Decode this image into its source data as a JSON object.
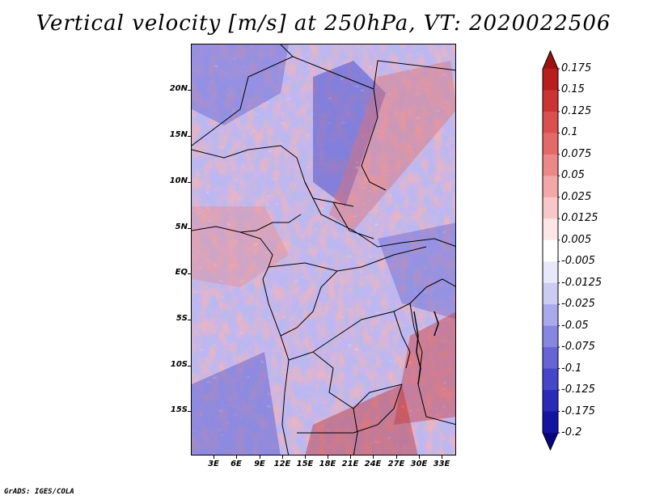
{
  "map": {
    "title": "Vertical velocity [m/s] at 250hPa, VT: 2020022506",
    "lat_labels": [
      "20N",
      "15N",
      "10N",
      "5N",
      "EQ",
      "5S",
      "10S",
      "15S"
    ],
    "lon_labels": [
      "3E",
      "6E",
      "9E",
      "12E",
      "15E",
      "18E",
      "21E",
      "24E",
      "27E",
      "30E",
      "33E"
    ],
    "footer": "GrADS: IGES/COLA"
  },
  "colorbar": {
    "levels": [
      "0.175",
      "0.15",
      "0.125",
      "0.1",
      "0.075",
      "0.05",
      "0.025",
      "0.0125",
      "0.005",
      "-0.005",
      "-0.0125",
      "-0.025",
      "-0.05",
      "-0.075",
      "-0.1",
      "-0.125",
      "-0.175",
      "-0.2"
    ],
    "colors": [
      "#a01010",
      "#b81e1e",
      "#cc3333",
      "#da4f4f",
      "#e46a6a",
      "#ec8888",
      "#f3a8a8",
      "#f8c8c8",
      "#fce6e6",
      "#ffffff",
      "#e8e8fb",
      "#cbcbf4",
      "#a9a9ec",
      "#8787e2",
      "#6565d6",
      "#4646c8",
      "#2a2ab6",
      "#1414a0",
      "#08087e"
    ]
  },
  "fields": {
    "negative_color": "#7070dc",
    "positive_color": "#e07a7a",
    "background_color": "#b9b9ee"
  }
}
